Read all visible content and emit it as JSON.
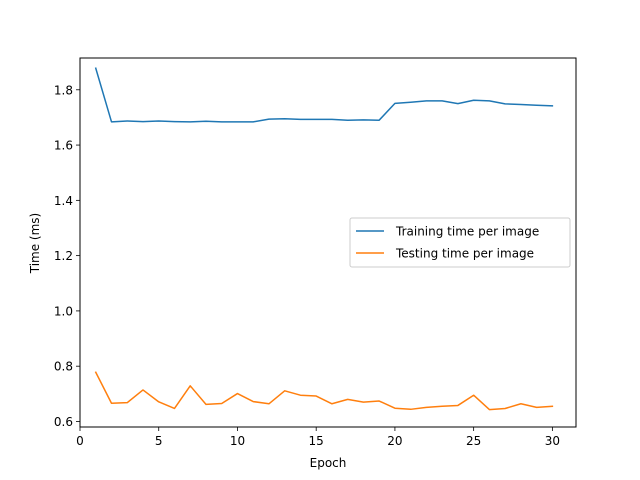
{
  "chart_data": {
    "type": "line",
    "xlabel": "Epoch",
    "ylabel": "Time (ms)",
    "xlim": [
      0,
      31.5
    ],
    "ylim": [
      0.58,
      1.915
    ],
    "xticks": [
      0,
      5,
      10,
      15,
      20,
      25,
      30
    ],
    "yticks": [
      0.6,
      0.8,
      1.0,
      1.2,
      1.4,
      1.6,
      1.8
    ],
    "ytick_labels": [
      "0.6",
      "0.8",
      "1.0",
      "1.2",
      "1.4",
      "1.6",
      "1.8"
    ],
    "grid": false,
    "legend_position": "center-right",
    "x": [
      1,
      2,
      3,
      4,
      5,
      6,
      7,
      8,
      9,
      10,
      11,
      12,
      13,
      14,
      15,
      16,
      17,
      18,
      19,
      20,
      21,
      22,
      23,
      24,
      25,
      26,
      27,
      28,
      29,
      30
    ],
    "series": [
      {
        "name": "Training time per image",
        "color": "#1f77b4",
        "values": [
          1.878,
          1.684,
          1.687,
          1.685,
          1.687,
          1.685,
          1.684,
          1.686,
          1.684,
          1.684,
          1.684,
          1.694,
          1.695,
          1.693,
          1.693,
          1.693,
          1.69,
          1.691,
          1.69,
          1.751,
          1.755,
          1.76,
          1.76,
          1.75,
          1.762,
          1.76,
          1.749,
          1.747,
          1.744,
          1.742
        ]
      },
      {
        "name": "Testing time per image",
        "color": "#ff7f0e",
        "values": [
          0.778,
          0.666,
          0.668,
          0.714,
          0.671,
          0.647,
          0.729,
          0.662,
          0.665,
          0.701,
          0.672,
          0.664,
          0.711,
          0.695,
          0.692,
          0.664,
          0.68,
          0.67,
          0.674,
          0.648,
          0.644,
          0.651,
          0.655,
          0.658,
          0.695,
          0.643,
          0.647,
          0.664,
          0.651,
          0.655
        ]
      }
    ]
  }
}
